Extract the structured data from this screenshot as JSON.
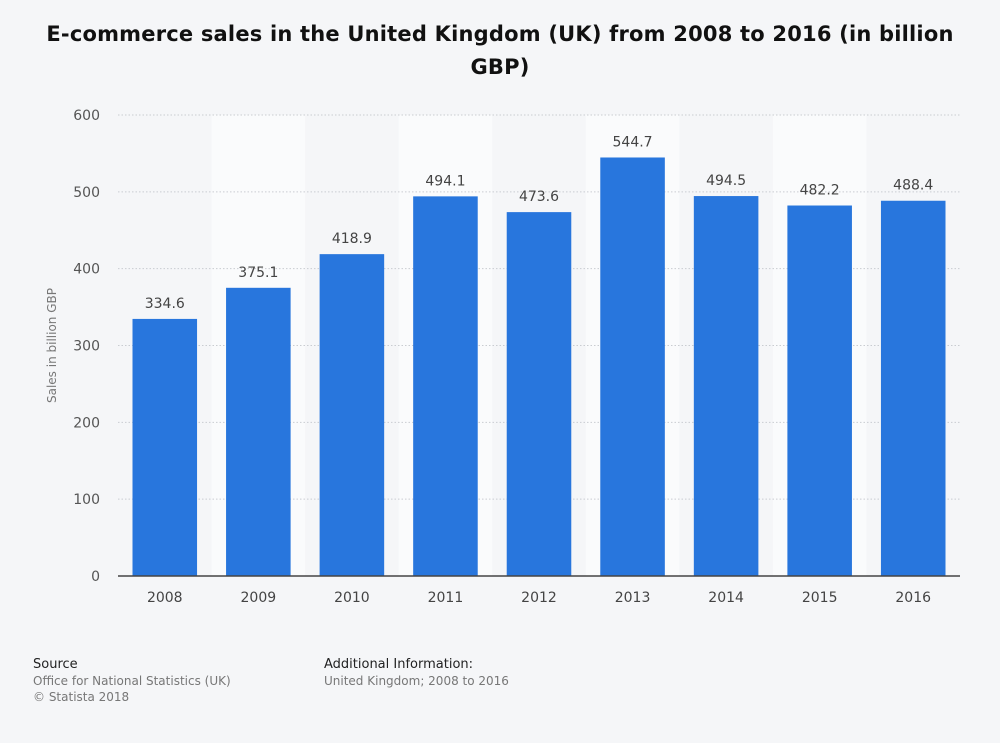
{
  "chart_data": {
    "type": "bar",
    "title": "E-commerce sales in the United Kingdom (UK) from 2008 to 2016 (in billion GBP)",
    "xlabel": "",
    "ylabel": "Sales in billion GBP",
    "categories": [
      "2008",
      "2009",
      "2010",
      "2011",
      "2012",
      "2013",
      "2014",
      "2015",
      "2016"
    ],
    "values": [
      334.6,
      375.1,
      418.9,
      494.1,
      473.6,
      544.7,
      494.5,
      482.2,
      488.4
    ],
    "value_labels": [
      "334.6",
      "375.1",
      "418.9",
      "494.1",
      "473.6",
      "544.7",
      "494.5",
      "482.2",
      "488.4"
    ],
    "ylim": [
      0,
      600
    ],
    "yticks": [
      0,
      100,
      200,
      300,
      400,
      500,
      600
    ],
    "grid": true,
    "bar_color": "#2876dd"
  },
  "footer": {
    "source_heading": "Source",
    "source_lines": [
      "Office for National Statistics (UK)",
      "© Statista 2018"
    ],
    "additional_heading": "Additional Information:",
    "additional_text": "United Kingdom; 2008 to 2016"
  }
}
